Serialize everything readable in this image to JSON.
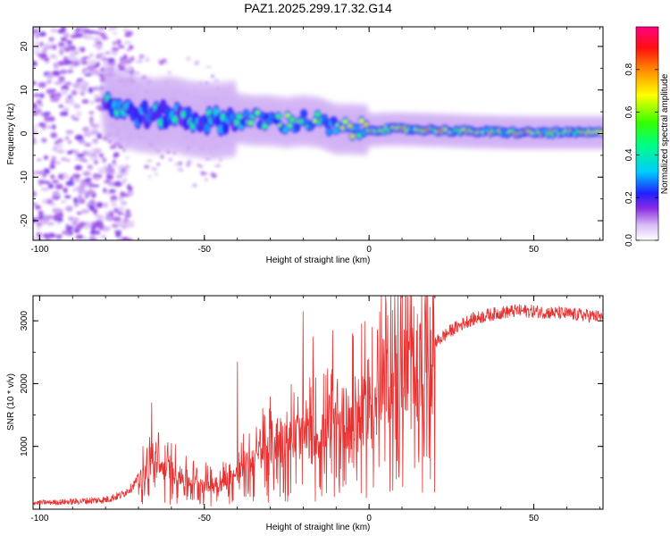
{
  "title": "PAZ1.2025.299.17.32.G14",
  "chart_data": [
    {
      "type": "heatmap",
      "xlabel": "Height of straight line (km)",
      "ylabel": "Frequency (Hz)",
      "xlim": [
        -102,
        71
      ],
      "ylim": [
        -24.5,
        24.5
      ],
      "xticks": [
        -100,
        -50,
        0,
        50
      ],
      "yticks": [
        -20,
        -10,
        0,
        10,
        20
      ],
      "colorbar": {
        "label": "Normalized spectral amplitude",
        "range": [
          0,
          1
        ],
        "ticks": [
          "0.0",
          "0.2",
          "0.4",
          "0.6",
          "0.8"
        ]
      },
      "ridge": {
        "x": [
          -80,
          -75,
          -70,
          -65,
          -60,
          -55,
          -50,
          -45,
          -40,
          -35,
          -30,
          -25,
          -20,
          -15,
          -10,
          -5,
          0,
          5,
          10,
          20,
          30,
          40,
          50,
          60,
          71
        ],
        "freq_hz": [
          7.5,
          5.5,
          4.5,
          4.0,
          4.5,
          3.5,
          3.0,
          3.0,
          3.5,
          3.0,
          3.0,
          2.5,
          3.0,
          2.5,
          1.0,
          1.0,
          0.8,
          1.0,
          1.0,
          0.8,
          0.5,
          0.3,
          0.2,
          0.2,
          0.2
        ]
      }
    },
    {
      "type": "line",
      "xlabel": "Height of straight line (km)",
      "ylabel": "SNR (10 * v/v)",
      "xlim": [
        -102,
        71
      ],
      "ylim": [
        0,
        3400
      ],
      "xticks": [
        -100,
        -50,
        0,
        50
      ],
      "yticks": [
        1000,
        2000,
        3000
      ],
      "series": [
        {
          "name": "SNR",
          "color": "#e83232",
          "x": [
            -102,
            -90,
            -80,
            -75,
            -72,
            -70,
            -65,
            -60,
            -55,
            -50,
            -45,
            -40,
            -35,
            -30,
            -25,
            -20,
            -15,
            -10,
            -5,
            0,
            5,
            10,
            15,
            20,
            25,
            30,
            35,
            40,
            45,
            50,
            55,
            60,
            65,
            71
          ],
          "y": [
            100,
            120,
            150,
            230,
            350,
            500,
            700,
            600,
            450,
            400,
            400,
            550,
            800,
            1000,
            1100,
            1150,
            1150,
            1300,
            1450,
            1650,
            1900,
            2100,
            2400,
            2650,
            2850,
            3000,
            3080,
            3130,
            3160,
            3150,
            3130,
            3110,
            3090,
            3060
          ]
        }
      ]
    }
  ]
}
